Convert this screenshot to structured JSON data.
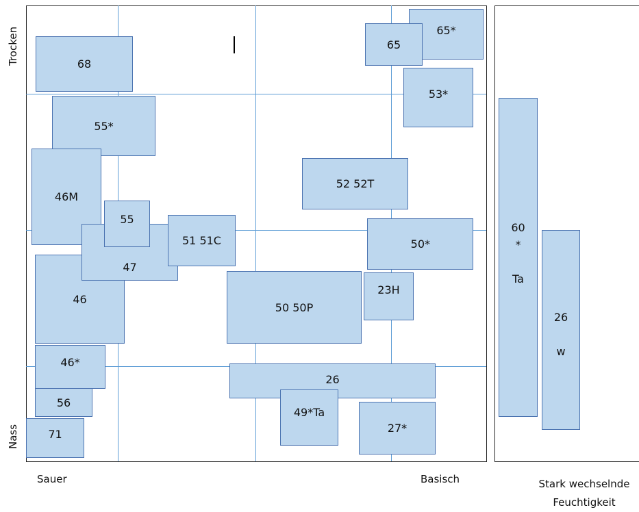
{
  "axes": {
    "top": "Trocken",
    "bottom": "Nass",
    "left": "Sauer",
    "right": "Basisch",
    "side_line1": "Stark wechselnde",
    "side_line2": "Feuchtigkeit"
  },
  "boxes": [
    "65*",
    "65",
    "68",
    "53*",
    "55*",
    "52 52T",
    "46M",
    "46",
    "47",
    "55",
    "51 51C",
    "50*",
    "50 50P",
    "23H",
    "46*",
    "26",
    "56",
    "49*Ta",
    "27*",
    "71"
  ],
  "side_boxes": [
    "60\n*\n\nTa",
    "26\n\nw"
  ]
}
